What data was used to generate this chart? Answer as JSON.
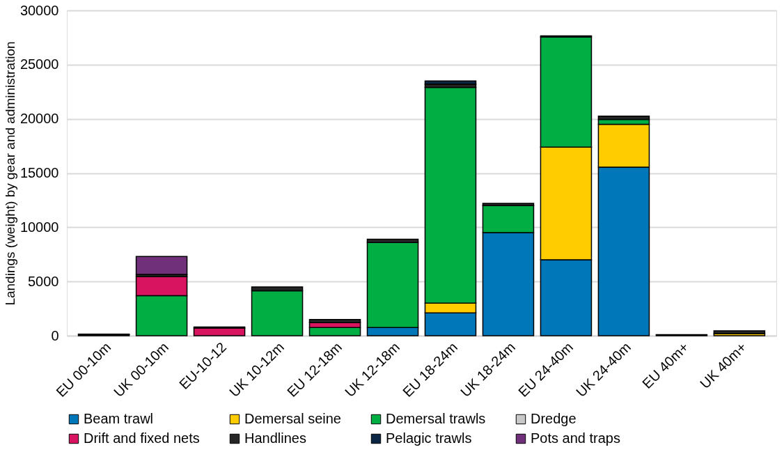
{
  "chart_data": {
    "type": "bar",
    "stacked": true,
    "ylabel": "Landings (weight) by gear and administration",
    "categories": [
      "EU 00-10m",
      "UK 00-10m",
      "EU-10-12",
      "UK 10-12m",
      "EU 12-18m",
      "UK 12-18m",
      "EU 18-24m",
      "UK 18-24m",
      "EU 24-40m",
      "UK 24-40m",
      "EU 40m+",
      "UK 40m+"
    ],
    "series": [
      {
        "name": "Beam trawl",
        "color": "#0077b8",
        "values": [
          null,
          null,
          null,
          null,
          null,
          750,
          2100,
          9500,
          7000,
          15550,
          null,
          null
        ]
      },
      {
        "name": "Demersal seine",
        "color": "#ffcc00",
        "values": [
          null,
          null,
          null,
          null,
          null,
          null,
          900,
          null,
          10400,
          3950,
          null,
          200
        ]
      },
      {
        "name": "Demersal trawls",
        "color": "#00ae44",
        "values": [
          null,
          3700,
          null,
          4150,
          750,
          7850,
          19900,
          2500,
          10150,
          450,
          null,
          null
        ]
      },
      {
        "name": "Dredge",
        "color": "#c8c8c8",
        "values": [
          null,
          null,
          null,
          null,
          null,
          null,
          null,
          null,
          null,
          null,
          null,
          null
        ]
      },
      {
        "name": "Drift and fixed nets",
        "color": "#d81460",
        "values": [
          100,
          1750,
          700,
          null,
          450,
          null,
          null,
          null,
          null,
          null,
          null,
          null
        ]
      },
      {
        "name": "Handlines",
        "color": "#262626",
        "values": [
          50,
          200,
          100,
          350,
          300,
          300,
          300,
          200,
          100,
          300,
          100,
          250
        ]
      },
      {
        "name": "Pelagic trawls",
        "color": "#0b2545",
        "values": [
          null,
          null,
          null,
          null,
          null,
          null,
          300,
          null,
          null,
          null,
          null,
          null
        ]
      },
      {
        "name": "Pots and traps",
        "color": "#70307a",
        "values": [
          null,
          1650,
          null,
          null,
          null,
          null,
          null,
          null,
          null,
          null,
          null,
          null
        ]
      }
    ],
    "ylim": [
      0,
      30000
    ],
    "yticks": [
      0,
      5000,
      10000,
      15000,
      20000,
      25000,
      30000
    ],
    "grid": "y",
    "legend": "bottom"
  }
}
